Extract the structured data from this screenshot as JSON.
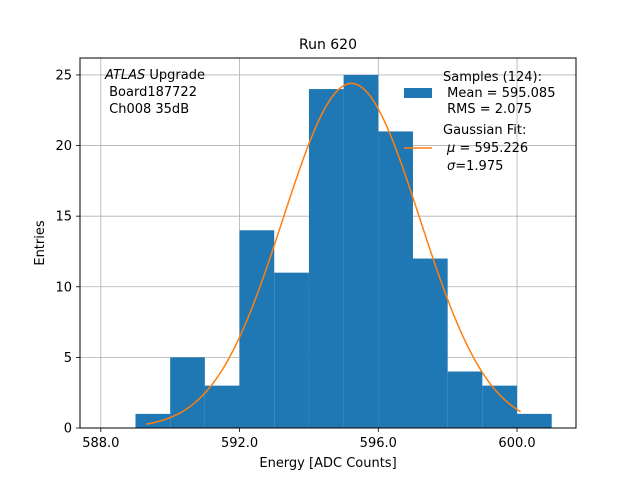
{
  "chart_data": {
    "type": "histogram",
    "title": "Run 620",
    "xlabel": "Energy [ADC Counts]",
    "ylabel": "Entries",
    "xlim": [
      587.4,
      601.7
    ],
    "ylim": [
      0,
      26.2
    ],
    "grid": true,
    "xticks": [
      588.0,
      592.0,
      596.0,
      600.0
    ],
    "xtick_labels": [
      "588.0",
      "592.0",
      "596.0",
      "600.0"
    ],
    "yticks": [
      0,
      5,
      10,
      15,
      20,
      25
    ],
    "ytick_labels": [
      "0",
      "5",
      "10",
      "15",
      "20",
      "25"
    ],
    "bin_edges": [
      589,
      590,
      591,
      592,
      593,
      594,
      595,
      596,
      597,
      598,
      599,
      600,
      601
    ],
    "counts": [
      1,
      5,
      3,
      14,
      11,
      24,
      25,
      21,
      12,
      4,
      3,
      1
    ],
    "bar_color": "#1f77b4",
    "fit": {
      "name": "Gaussian Fit",
      "mu": 595.226,
      "sigma": 1.975,
      "amplitude": 24.4,
      "x_range": [
        589.3,
        600.1
      ],
      "color": "#ff7f0e"
    },
    "annotation": {
      "italic": "ATLAS",
      "line1_rest": " Upgrade",
      "line2": " Board187722",
      "line3": " Ch008 35dB"
    },
    "legend": {
      "placement": "top-right",
      "samples_title": "Samples (124):",
      "samples_mean": " Mean = 595.085",
      "samples_rms": " RMS = 2.075",
      "fit_title": "Gaussian Fit:",
      "fit_mu_symbol": "μ",
      "fit_mu_value": " = 595.226",
      "fit_sigma_symbol": "σ",
      "fit_sigma_value": "=1.975"
    }
  }
}
